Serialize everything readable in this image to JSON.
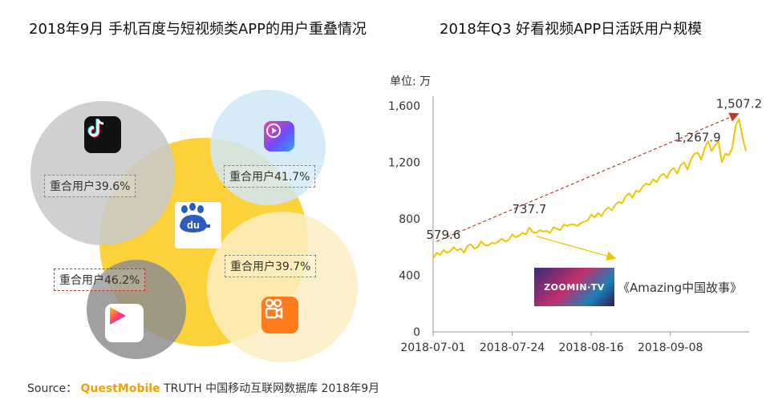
{
  "left_panel": {
    "title": "2018年9月 手机百度与短视频类APP的用户重叠情况",
    "labels": {
      "tiktok": "重合用户39.6%",
      "haokan": "重合用户41.7%",
      "kuaishou": "重合用户39.7%",
      "quanmin": "重合用户46.2%"
    },
    "center_app": "du",
    "icons": [
      "tiktok-icon",
      "haokan-video-icon",
      "baidu-icon",
      "quanmin-video-icon",
      "kuaishou-icon"
    ],
    "colors": {
      "baidu_circle": "#fcd23a",
      "tiktok_circle": "#c9c9c9",
      "haokan_circle": "#cfe8f6",
      "kuaishou_circle": "#fbeec3",
      "quanmin_circle": "#8f8f8f",
      "highlight_border": "#c0392b"
    }
  },
  "chart_data": {
    "type": "line",
    "title": "2018年Q3 好看视频APP日活跃用户规模",
    "ylabel": "单位: 万",
    "ylim": [
      0,
      1600
    ],
    "yticks": [
      "0",
      "400",
      "800",
      "1,200",
      "1,600"
    ],
    "xticks": [
      "2018-07-01",
      "2018-07-24",
      "2018-08-16",
      "2018-09-08"
    ],
    "x_start": "2018-07-01",
    "x_end": "2018-09-30",
    "series": [
      {
        "color": "#f2c500",
        "points": [
          [
            "2018-07-01",
            520
          ],
          [
            "2018-07-02",
            560
          ],
          [
            "2018-07-03",
            545
          ],
          [
            "2018-07-04",
            579.6
          ],
          [
            "2018-07-05",
            560
          ],
          [
            "2018-07-06",
            570
          ],
          [
            "2018-07-07",
            600
          ],
          [
            "2018-07-08",
            575
          ],
          [
            "2018-07-09",
            590
          ],
          [
            "2018-07-10",
            560
          ],
          [
            "2018-07-11",
            610
          ],
          [
            "2018-07-12",
            620
          ],
          [
            "2018-07-13",
            590
          ],
          [
            "2018-07-14",
            600
          ],
          [
            "2018-07-15",
            640
          ],
          [
            "2018-07-16",
            615
          ],
          [
            "2018-07-17",
            610
          ],
          [
            "2018-07-18",
            630
          ],
          [
            "2018-07-19",
            625
          ],
          [
            "2018-07-20",
            640
          ],
          [
            "2018-07-21",
            660
          ],
          [
            "2018-07-22",
            640
          ],
          [
            "2018-07-23",
            650
          ],
          [
            "2018-07-24",
            690
          ],
          [
            "2018-07-25",
            670
          ],
          [
            "2018-07-26",
            680
          ],
          [
            "2018-07-27",
            700
          ],
          [
            "2018-07-28",
            690
          ],
          [
            "2018-07-29",
            737.7
          ],
          [
            "2018-07-30",
            705
          ],
          [
            "2018-07-31",
            700
          ],
          [
            "2018-08-01",
            720
          ],
          [
            "2018-08-02",
            710
          ],
          [
            "2018-08-03",
            715
          ],
          [
            "2018-08-04",
            700
          ],
          [
            "2018-08-05",
            740
          ],
          [
            "2018-08-06",
            730
          ],
          [
            "2018-08-07",
            720
          ],
          [
            "2018-08-08",
            760
          ],
          [
            "2018-08-09",
            750
          ],
          [
            "2018-08-10",
            760
          ],
          [
            "2018-08-11",
            760
          ],
          [
            "2018-08-12",
            750
          ],
          [
            "2018-08-13",
            770
          ],
          [
            "2018-08-14",
            780
          ],
          [
            "2018-08-15",
            790
          ],
          [
            "2018-08-16",
            830
          ],
          [
            "2018-08-17",
            810
          ],
          [
            "2018-08-18",
            840
          ],
          [
            "2018-08-19",
            820
          ],
          [
            "2018-08-20",
            860
          ],
          [
            "2018-08-21",
            880
          ],
          [
            "2018-08-22",
            860
          ],
          [
            "2018-08-23",
            900
          ],
          [
            "2018-08-24",
            920
          ],
          [
            "2018-08-25",
            910
          ],
          [
            "2018-08-26",
            960
          ],
          [
            "2018-08-27",
            980
          ],
          [
            "2018-08-28",
            950
          ],
          [
            "2018-08-29",
            1000
          ],
          [
            "2018-08-30",
            990
          ],
          [
            "2018-08-31",
            1030
          ],
          [
            "2018-09-01",
            1050
          ],
          [
            "2018-09-02",
            1040
          ],
          [
            "2018-09-03",
            1080
          ],
          [
            "2018-09-04",
            1060
          ],
          [
            "2018-09-05",
            1100
          ],
          [
            "2018-09-06",
            1120
          ],
          [
            "2018-09-07",
            1090
          ],
          [
            "2018-09-08",
            1140
          ],
          [
            "2018-09-09",
            1160
          ],
          [
            "2018-09-10",
            1120
          ],
          [
            "2018-09-11",
            1180
          ],
          [
            "2018-09-12",
            1200
          ],
          [
            "2018-09-13",
            1150
          ],
          [
            "2018-09-14",
            1220
          ],
          [
            "2018-09-15",
            1260
          ],
          [
            "2018-09-16",
            1267.9
          ],
          [
            "2018-09-17",
            1220
          ],
          [
            "2018-09-18",
            1300
          ],
          [
            "2018-09-19",
            1350
          ],
          [
            "2018-09-20",
            1280
          ],
          [
            "2018-09-21",
            1320
          ],
          [
            "2018-09-22",
            1350
          ],
          [
            "2018-09-23",
            1200
          ],
          [
            "2018-09-24",
            1260
          ],
          [
            "2018-09-25",
            1250
          ],
          [
            "2018-09-26",
            1300
          ],
          [
            "2018-09-27",
            1460
          ],
          [
            "2018-09-28",
            1507.2
          ],
          [
            "2018-09-29",
            1380
          ],
          [
            "2018-09-30",
            1280
          ]
        ]
      }
    ],
    "labeled_points": [
      {
        "x": "2018-07-04",
        "y": 579.6,
        "label": "579.6"
      },
      {
        "x": "2018-07-29",
        "y": 737.7,
        "label": "737.7"
      },
      {
        "x": "2018-09-16",
        "y": 1267.9,
        "label": "1,267.9"
      },
      {
        "x": "2018-09-28",
        "y": 1507.2,
        "label": "1,507.2"
      }
    ],
    "trend_arrow": {
      "from": [
        "2018-07-02",
        560
      ],
      "to": [
        "2018-09-28",
        1507.2
      ],
      "color": "#c0392b"
    },
    "annotation": {
      "text": "《Amazing中国故事》",
      "thumbnail_text": "ZOOMIN·TV"
    },
    "grid": false
  },
  "source": {
    "prefix": "Source：",
    "brand": "QuestMobile",
    "text": "TRUTH 中国移动互联网数据库 2018年9月"
  }
}
